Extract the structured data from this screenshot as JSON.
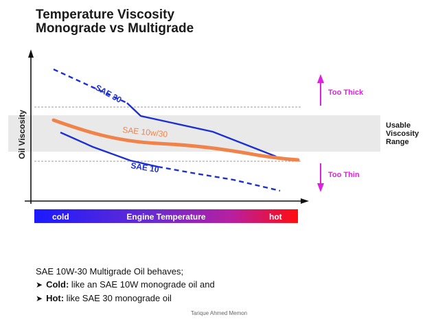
{
  "title": {
    "line1": "Temperature Viscosity",
    "line2": "Monograde vs Multigrade"
  },
  "diagram": {
    "y_axis_label": "Oil Viscosity",
    "curve_labels": {
      "sae30": "SAE 30",
      "sae10w30": "SAE 10w/30",
      "sae10": "SAE 10"
    },
    "range_label": [
      "Usable",
      "Viscosity",
      "Range"
    ],
    "too_thick": "Too Thick",
    "too_thin": "Too Thin",
    "temp_bar": {
      "cold": "cold",
      "middle": "Engine Temperature",
      "hot": "hot"
    },
    "colors": {
      "monograde": "#1c2fd0",
      "multigrade": "#f0834a",
      "arrows": "#e020e0",
      "range_band": "#e9e9e9",
      "bar_start": "#1a1aff",
      "bar_end": "#ff0d0d"
    }
  },
  "bullets": {
    "intro": "SAE 10W-30 Multigrade Oil behaves;",
    "items": [
      {
        "label": "Cold:",
        "text": " like an SAE 10W monograde oil and"
      },
      {
        "label": "Hot:",
        "text": " like SAE 30 monograde oil"
      }
    ]
  },
  "author": "Tarique Ahmed Memon"
}
